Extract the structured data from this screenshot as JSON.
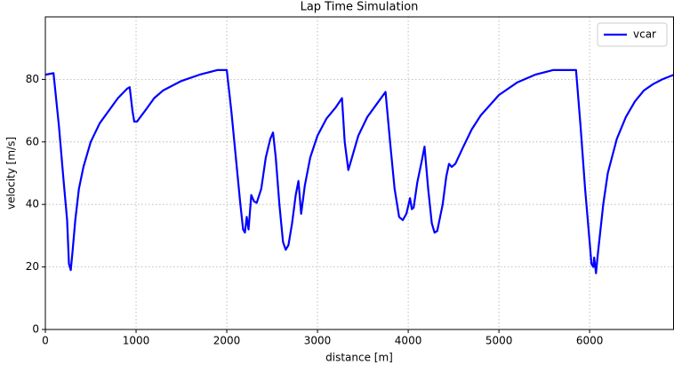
{
  "chart_data": {
    "type": "line",
    "title": "Lap Time Simulation",
    "xlabel": "distance [m]",
    "ylabel": "velocity [m/s]",
    "x": [
      0,
      90,
      150,
      200,
      240,
      260,
      280,
      300,
      330,
      370,
      420,
      500,
      600,
      700,
      800,
      900,
      930,
      960,
      980,
      1010,
      1100,
      1200,
      1300,
      1500,
      1700,
      1900,
      2000,
      2050,
      2100,
      2150,
      2180,
      2200,
      2220,
      2240,
      2270,
      2300,
      2330,
      2380,
      2430,
      2480,
      2510,
      2540,
      2580,
      2620,
      2650,
      2680,
      2720,
      2760,
      2790,
      2820,
      2860,
      2920,
      3000,
      3100,
      3200,
      3270,
      3300,
      3340,
      3380,
      3450,
      3550,
      3650,
      3750,
      3800,
      3850,
      3900,
      3940,
      3980,
      4020,
      4040,
      4060,
      4100,
      4150,
      4180,
      4220,
      4260,
      4290,
      4320,
      4380,
      4420,
      4450,
      4480,
      4520,
      4600,
      4700,
      4800,
      5000,
      5200,
      5400,
      5600,
      5800,
      5850,
      5900,
      5950,
      6000,
      6020,
      6040,
      6050,
      6070,
      6090,
      6150,
      6200,
      6300,
      6400,
      6500,
      6600,
      6700,
      6800,
      6930
    ],
    "series": [
      {
        "name": "vcar",
        "color": "#0000ff",
        "values": [
          81.5,
          82,
          65,
          48,
          35,
          21,
          19,
          25,
          35,
          45,
          52,
          60,
          66,
          70,
          74,
          77,
          77.5,
          70,
          66.5,
          66.5,
          70,
          74,
          76.5,
          79.5,
          81.5,
          83,
          83,
          70,
          55,
          40,
          32,
          31,
          36,
          32,
          43,
          41,
          40.5,
          45,
          55,
          61,
          63,
          55,
          40,
          28,
          25.5,
          27,
          34,
          43,
          47.5,
          37,
          46,
          55,
          62,
          67.5,
          71,
          74,
          60,
          51,
          55,
          62,
          68,
          72,
          76,
          60,
          45,
          36,
          35,
          37,
          42,
          38.5,
          39,
          47,
          54,
          58.5,
          45,
          34,
          31,
          31.5,
          40,
          49,
          53,
          52,
          53,
          58,
          64,
          68.5,
          75,
          79,
          81.5,
          83,
          83,
          83,
          65,
          45,
          28,
          21,
          20,
          23,
          18,
          24,
          40,
          50,
          61,
          68,
          73,
          76.5,
          78.5,
          80,
          81.5
        ]
      }
    ],
    "xlim": [
      0,
      6930
    ],
    "ylim": [
      0,
      100
    ],
    "xticks": [
      0,
      1000,
      2000,
      3000,
      4000,
      5000,
      6000
    ],
    "yticks": [
      0,
      20,
      40,
      60,
      80
    ],
    "grid": true,
    "legend": "upper right"
  }
}
